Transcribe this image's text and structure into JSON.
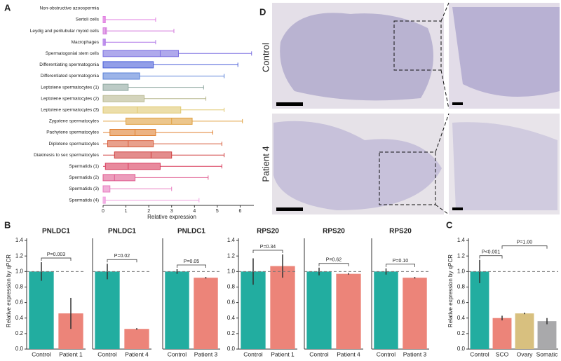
{
  "image_panel": {
    "panel_label": "D",
    "rows": [
      "Control",
      "Patient 4"
    ]
  },
  "chart_data": [
    {
      "type": "box",
      "panel_label": "A",
      "group_label": "Non-obstructive azoospermia",
      "categories": [
        "Sertoli cells",
        "Leydig and peritubular myoid cells",
        "Macrophages",
        "Spermatogonial stem cells",
        "Differentiating spermatogonia",
        "Differentiated spermatogonia",
        "Leptotene spermatocytes (1)",
        "Leptotene spermatocytes (2)",
        "Leptotene spermatocytes (3)",
        "Zygotene spermatocytes",
        "Pachytene spermatocytes",
        "Diplotene spermatocytes",
        "Diakinesis to sec spermatocytes",
        "Spermatids (1)",
        "Spermatids (2)",
        "Spermatids (3)",
        "Spermatids (4)"
      ],
      "whisker_low": [
        0,
        0,
        0,
        0,
        0,
        0,
        0,
        0,
        0,
        0,
        0,
        0,
        0,
        0,
        0,
        0,
        0
      ],
      "q1": [
        0,
        0,
        0,
        0,
        0,
        0,
        0,
        0,
        0,
        1.0,
        0.3,
        0.2,
        0.5,
        0.1,
        0,
        0,
        0
      ],
      "median": [
        0.05,
        0.1,
        0.05,
        2.5,
        0,
        0,
        0,
        0,
        1.5,
        3.0,
        1.4,
        1.1,
        2.1,
        1.1,
        0.5,
        0,
        0.05
      ],
      "q3": [
        0.1,
        0.15,
        0.1,
        3.3,
        2.2,
        1.6,
        1.1,
        1.8,
        3.4,
        3.9,
        2.3,
        2.2,
        3.0,
        2.5,
        1.4,
        0.3,
        0.1
      ],
      "whisker_high": [
        2.3,
        3.1,
        2.3,
        6.5,
        5.9,
        5.3,
        4.4,
        4.5,
        5.3,
        6.1,
        4.8,
        5.2,
        5.3,
        5.2,
        4.6,
        3.0,
        4.2
      ],
      "colors": [
        "#e07ee0",
        "#d47bdc",
        "#b07ae8",
        "#7a6fe0",
        "#4a5ed8",
        "#5a82d8",
        "#8fa8a0",
        "#b8b890",
        "#e0c870",
        "#e0a040",
        "#e08030",
        "#d86040",
        "#d04040",
        "#d83c5c",
        "#e05c90",
        "#e87cc0",
        "#f0a0e0"
      ],
      "xlabel": "Relative expression",
      "xlim": [
        0,
        6.6
      ],
      "xticks": [
        0,
        1,
        2,
        3,
        4,
        5,
        6
      ]
    },
    {
      "type": "bar",
      "panel_label": "B",
      "title": "PNLDC1",
      "categories": [
        "Control",
        "Patient 1"
      ],
      "values": [
        1.0,
        0.46
      ],
      "errors": [
        0.12,
        0.2
      ],
      "colors": [
        "#22ada0",
        "#ec8479"
      ],
      "ylabel": "Relative expression by qPCR",
      "ylim": [
        0,
        1.5
      ],
      "yticks": [
        {
          "value": 0,
          "label": "0.0"
        },
        0.2,
        0.4,
        0.6,
        0.8,
        {
          "value": 1,
          "label": "1.0"
        },
        1.2,
        1.4
      ],
      "reference_line": 1.0,
      "annotations": [
        {
          "text": "P=0.003",
          "between": [
            "Control",
            "Patient 1"
          ]
        }
      ]
    },
    {
      "type": "bar",
      "title": "PNLDC1",
      "categories": [
        "Control",
        "Patient 4"
      ],
      "values": [
        1.0,
        0.26
      ],
      "errors": [
        0.1,
        0.01
      ],
      "colors": [
        "#22ada0",
        "#ec8479"
      ],
      "ylim": [
        0,
        1.5
      ],
      "reference_line": 1.0,
      "annotations": [
        {
          "text": "P=0.02",
          "between": [
            "Control",
            "Patient 4"
          ]
        }
      ]
    },
    {
      "type": "bar",
      "title": "PNLDC1",
      "categories": [
        "Control",
        "Patient 3"
      ],
      "values": [
        1.0,
        0.92
      ],
      "errors": [
        0.03,
        0.01
      ],
      "colors": [
        "#22ada0",
        "#ec8479"
      ],
      "ylim": [
        0,
        1.5
      ],
      "reference_line": 1.0,
      "annotations": [
        {
          "text": "P=0.05",
          "between": [
            "Control",
            "Patient 3"
          ]
        }
      ]
    },
    {
      "type": "bar",
      "title": "RPS20",
      "categories": [
        "Control",
        "Patient 1"
      ],
      "values": [
        1.0,
        1.07
      ],
      "errors": [
        0.17,
        0.15
      ],
      "colors": [
        "#22ada0",
        "#ec8479"
      ],
      "ylim": [
        0,
        1.5
      ],
      "yticks": [
        {
          "value": 0,
          "label": "0.0"
        },
        0.2,
        0.4,
        0.6,
        0.8,
        {
          "value": 1,
          "label": "1.0"
        },
        1.2,
        1.4
      ],
      "reference_line": 1.0,
      "annotations": [
        {
          "text": "P=0.34",
          "between": [
            "Control",
            "Patient 1"
          ]
        }
      ]
    },
    {
      "type": "bar",
      "title": "RPS20",
      "categories": [
        "Control",
        "Patient 4"
      ],
      "values": [
        1.0,
        0.97
      ],
      "errors": [
        0.05,
        0.01
      ],
      "colors": [
        "#22ada0",
        "#ec8479"
      ],
      "ylim": [
        0,
        1.5
      ],
      "reference_line": 1.0,
      "annotations": [
        {
          "text": "P=0.62",
          "between": [
            "Control",
            "Patient 4"
          ]
        }
      ]
    },
    {
      "type": "bar",
      "title": "RPS20",
      "categories": [
        "Control",
        "Patient 3"
      ],
      "values": [
        1.0,
        0.92
      ],
      "errors": [
        0.04,
        0.01
      ],
      "colors": [
        "#22ada0",
        "#ec8479"
      ],
      "ylim": [
        0,
        1.5
      ],
      "reference_line": 1.0,
      "annotations": [
        {
          "text": "P=0.10",
          "between": [
            "Control",
            "Patient 3"
          ]
        }
      ]
    },
    {
      "type": "bar",
      "panel_label": "C",
      "categories": [
        "Control",
        "SCO",
        "Ovary",
        "Somatic"
      ],
      "values": [
        1.0,
        0.4,
        0.46,
        0.36
      ],
      "errors": [
        0.15,
        0.03,
        0.01,
        0.04
      ],
      "colors": [
        "#22ada0",
        "#ec8479",
        "#d8c07f",
        "#a9a9ab"
      ],
      "ylabel": "Relative expression by qPCR",
      "ylim": [
        0,
        1.5
      ],
      "yticks": [
        {
          "value": 0,
          "label": "0.0"
        },
        0.2,
        0.4,
        0.6,
        0.8,
        {
          "value": 1,
          "label": "1.0"
        },
        1.2,
        1.4
      ],
      "reference_line": 1.0,
      "annotations": [
        {
          "text": "P<0.001",
          "between": [
            "Control",
            "SCO"
          ]
        },
        {
          "text": "P=1.00",
          "between": [
            "SCO",
            "Somatic"
          ]
        }
      ]
    }
  ]
}
